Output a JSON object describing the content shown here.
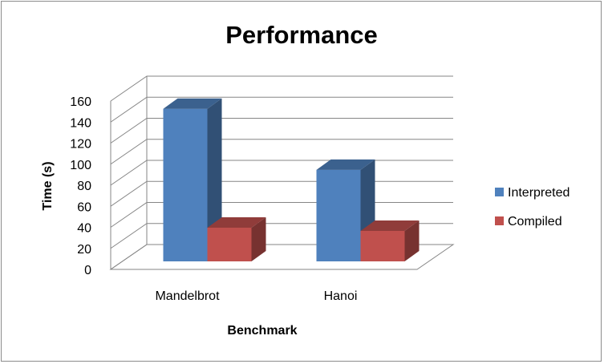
{
  "chart_data": {
    "type": "bar",
    "title": "Performance",
    "xlabel": "Benchmark",
    "ylabel": "Time (s)",
    "categories": [
      "Mandelbrot",
      "Hanoi"
    ],
    "series": [
      {
        "name": "Interpreted",
        "values": [
          145,
          87
        ],
        "color": "#4F81BD"
      },
      {
        "name": "Compiled",
        "values": [
          32,
          29
        ],
        "color": "#C0504D"
      }
    ],
    "ylim": [
      0,
      160
    ],
    "yticks": [
      0,
      20,
      40,
      60,
      80,
      100,
      120,
      140,
      160
    ],
    "grid": true,
    "legend": "right",
    "style": "3d-clustered"
  }
}
